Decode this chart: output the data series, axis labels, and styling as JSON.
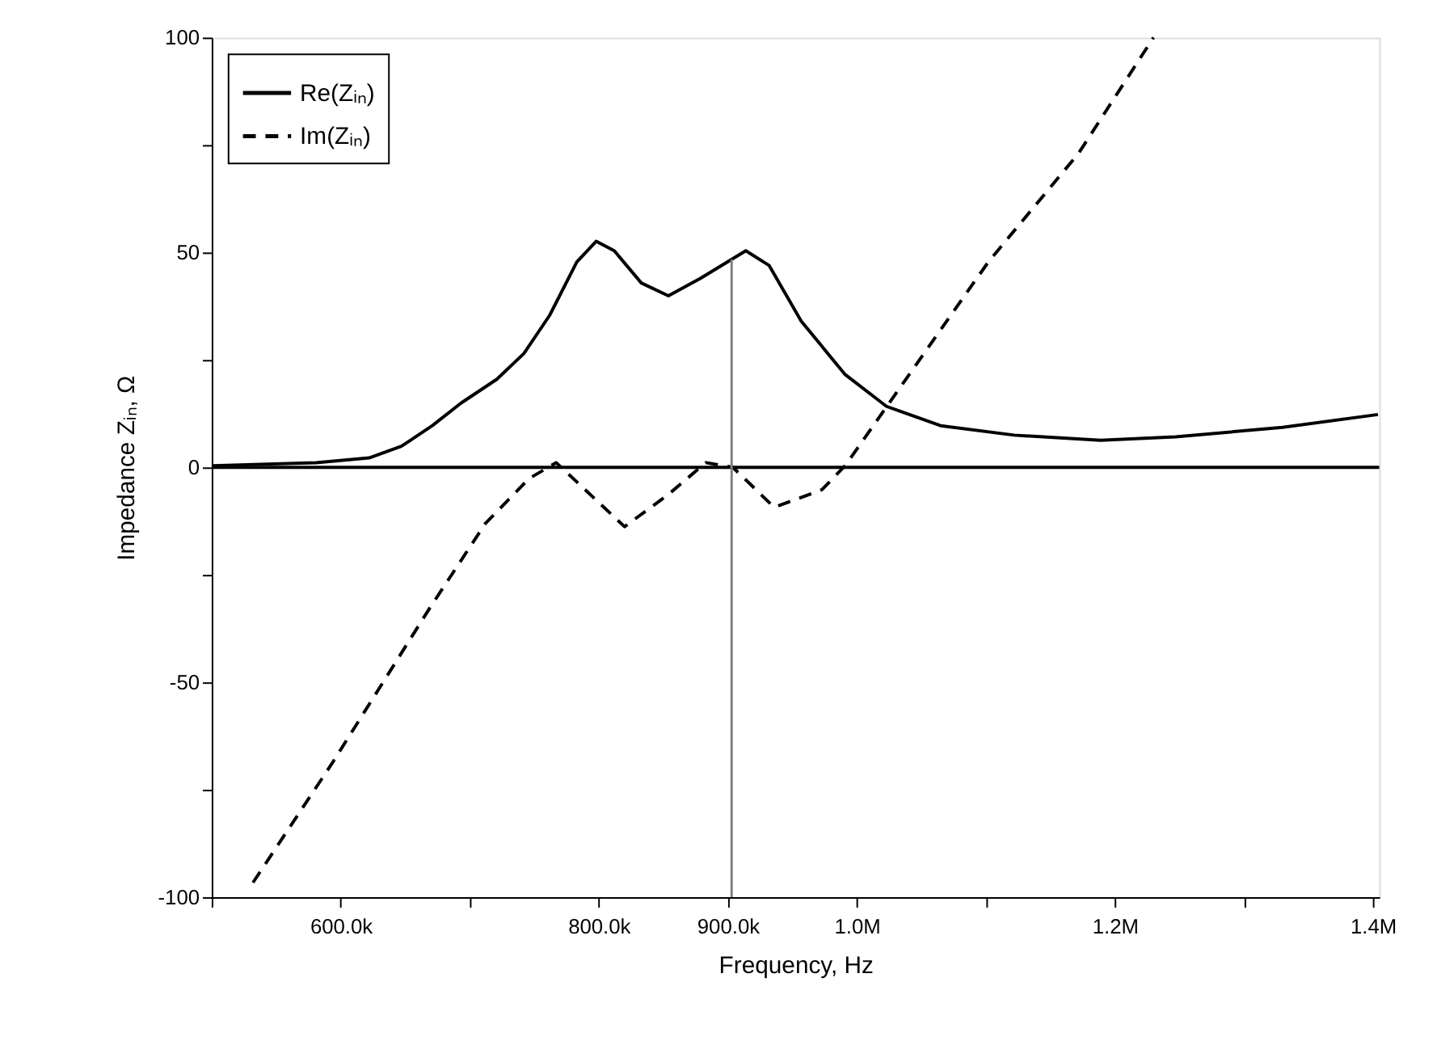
{
  "chart_data": {
    "type": "line",
    "xlabel": "Frequency, Hz",
    "ylabel": "Impedance Zᵢₙ, Ω",
    "xlim": [
      500000,
      1405000
    ],
    "ylim": [
      -100,
      100
    ],
    "xticks": [
      {
        "value": 500000,
        "label": null
      },
      {
        "value": 600000,
        "label": "600.0k"
      },
      {
        "value": 700000,
        "label": null
      },
      {
        "value": 800000,
        "label": "800.0k"
      },
      {
        "value": 900000,
        "label": "900.0k"
      },
      {
        "value": 1000000,
        "label": "1.0M"
      },
      {
        "value": 1100000,
        "label": null
      },
      {
        "value": 1200000,
        "label": "1.2M"
      },
      {
        "value": 1300000,
        "label": null
      },
      {
        "value": 1400000,
        "label": "1.4M"
      }
    ],
    "yticks": [
      -100,
      {
        "value": -75,
        "label": null
      },
      -50,
      {
        "value": -25,
        "label": null
      },
      0,
      {
        "value": 25,
        "label": null
      },
      50,
      {
        "value": 75,
        "label": null
      },
      100
    ],
    "grid": false,
    "legend": "top left",
    "marker": "none",
    "series": [
      {
        "name": "Re(Zᵢₙ)",
        "color": "#000000",
        "line_style": "solid",
        "x": [
          501000,
          581000,
          622000,
          647000,
          671000,
          693000,
          721000,
          742000,
          762000,
          783000,
          798000,
          812000,
          833000,
          854000,
          879000,
          914000,
          932000,
          957000,
          991000,
          1023000,
          1065000,
          1122000,
          1189000,
          1247000,
          1330000,
          1404000
        ],
        "values": [
          0.4,
          1.1,
          2.2,
          4.9,
          9.7,
          14.9,
          20.5,
          26.5,
          35.4,
          47.8,
          52.6,
          50.4,
          42.9,
          39.9,
          44.0,
          50.4,
          47.0,
          34.0,
          21.6,
          14.2,
          9.7,
          7.5,
          6.3,
          7.1,
          9.3,
          12.3
        ]
      },
      {
        "name": "Im(Zᵢₙ)",
        "color": "#000000",
        "line_style": "dashed",
        "x": [
          532000,
          593000,
          668000,
          712000,
          746000,
          767000,
          787000,
          820000,
          854000,
          883000,
          904000,
          936000,
          973000,
          991000,
          1032000,
          1102000,
          1172000,
          1230000
        ],
        "values": [
          -96.6,
          -69.0,
          -33.2,
          -13.1,
          -2.6,
          1.1,
          -4.5,
          -13.8,
          -6.3,
          1.1,
          0,
          -9.3,
          -5.2,
          0.4,
          17.9,
          47.8,
          73.1,
          100
        ]
      }
    ],
    "ref_lines": [
      {
        "axis": "y",
        "value": 0,
        "color": "#000000"
      },
      {
        "axis": "x",
        "value": 903000,
        "color": "#808080"
      }
    ]
  }
}
